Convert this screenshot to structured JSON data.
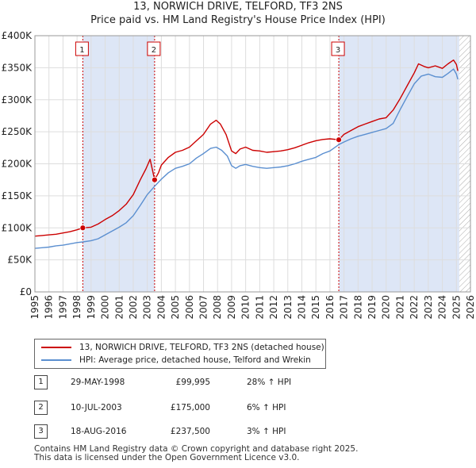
{
  "header": {
    "title": "13, NORWICH DRIVE, TELFORD, TF3 2NS",
    "subtitle": "Price paid vs. HM Land Registry's House Price Index (HPI)"
  },
  "legend": {
    "property_label": "13, NORWICH DRIVE, TELFORD, TF3 2NS (detached house)",
    "hpi_label": "HPI: Average price, detached house, Telford and Wrekin"
  },
  "sales": [
    {
      "num": "1",
      "date": "29-MAY-1998",
      "price": "£99,995",
      "hpi": "28% ↑ HPI"
    },
    {
      "num": "2",
      "date": "10-JUL-2003",
      "price": "£175,000",
      "hpi": "6% ↑ HPI"
    },
    {
      "num": "3",
      "date": "18-AUG-2016",
      "price": "£237,500",
      "hpi": "3% ↑ HPI"
    }
  ],
  "footer": {
    "line1": "Contains HM Land Registry data © Crown copyright and database right 2025.",
    "line2": "This data is licensed under the Open Government Licence v3.0."
  },
  "colors": {
    "property": "#cc0000",
    "hpi": "#5b8fd0",
    "shade": "#dde6f6",
    "grid": "#dddddd"
  },
  "chart_data": {
    "type": "line",
    "title": "13, NORWICH DRIVE, TELFORD, TF3 2NS",
    "subtitle": "Price paid vs. HM Land Registry's House Price Index (HPI)",
    "xlim": [
      1995,
      2026
    ],
    "ylim": [
      0,
      400000
    ],
    "x_ticks": [
      1995,
      1996,
      1997,
      1998,
      1999,
      2000,
      2001,
      2002,
      2003,
      2004,
      2005,
      2006,
      2007,
      2008,
      2009,
      2010,
      2011,
      2012,
      2013,
      2014,
      2015,
      2016,
      2017,
      2018,
      2019,
      2020,
      2021,
      2022,
      2023,
      2024,
      2025,
      2026
    ],
    "y_ticks": [
      {
        "value": 0,
        "label": "£0"
      },
      {
        "value": 50000,
        "label": "£50K"
      },
      {
        "value": 100000,
        "label": "£100K"
      },
      {
        "value": 150000,
        "label": "£150K"
      },
      {
        "value": 200000,
        "label": "£200K"
      },
      {
        "value": 250000,
        "label": "£250K"
      },
      {
        "value": 300000,
        "label": "£300K"
      },
      {
        "value": 350000,
        "label": "£350K"
      },
      {
        "value": 400000,
        "label": "£400K"
      }
    ],
    "grid": true,
    "shaded_ranges": [
      [
        1998.41,
        2003.52
      ],
      [
        2016.63,
        2025.2
      ]
    ],
    "hatched_from": 2025.2,
    "markers": [
      {
        "label": "1",
        "x": 1998.41,
        "y": 99995
      },
      {
        "label": "2",
        "x": 2003.52,
        "y": 175000
      },
      {
        "label": "3",
        "x": 2016.63,
        "y": 237500
      }
    ],
    "series": [
      {
        "name": "13, NORWICH DRIVE, TELFORD, TF3 2NS (detached house)",
        "color": "#cc0000",
        "x": [
          1995,
          1995.5,
          1996,
          1996.5,
          1997,
          1997.5,
          1998,
          1998.41,
          1999,
          1999.5,
          2000,
          2000.5,
          2001,
          2001.5,
          2002,
          2002.5,
          2002.9,
          2003.2,
          2003.52,
          2003.8,
          2004,
          2004.5,
          2005,
          2005.5,
          2006,
          2006.5,
          2007,
          2007.5,
          2007.9,
          2008.2,
          2008.6,
          2009,
          2009.3,
          2009.6,
          2010,
          2010.5,
          2011,
          2011.5,
          2012,
          2012.5,
          2013,
          2013.5,
          2014,
          2014.5,
          2015,
          2015.5,
          2016,
          2016.63,
          2017,
          2017.5,
          2018,
          2018.5,
          2019,
          2019.5,
          2020,
          2020.5,
          2021,
          2021.5,
          2022,
          2022.3,
          2022.7,
          2023,
          2023.5,
          2024,
          2024.4,
          2024.8,
          2025,
          2025.1
        ],
        "y": [
          87000,
          88000,
          89000,
          90000,
          92000,
          94000,
          97000,
          99995,
          101000,
          106000,
          113000,
          119000,
          127000,
          137000,
          152000,
          175000,
          192000,
          207000,
          175000,
          186000,
          198000,
          210000,
          218000,
          221000,
          226000,
          236000,
          246000,
          262000,
          268000,
          262000,
          246000,
          220000,
          216000,
          223000,
          226000,
          221000,
          220000,
          218000,
          219000,
          220000,
          222000,
          225000,
          229000,
          233000,
          236000,
          238000,
          239000,
          237500,
          246000,
          252000,
          258000,
          262000,
          266000,
          270000,
          272000,
          284000,
          302000,
          322000,
          342000,
          356000,
          352000,
          350000,
          353000,
          349000,
          356000,
          362000,
          355000,
          345000
        ]
      },
      {
        "name": "HPI: Average price, detached house, Telford and Wrekin",
        "color": "#5b8fd0",
        "x": [
          1995,
          1995.5,
          1996,
          1996.5,
          1997,
          1997.5,
          1998,
          1998.41,
          1999,
          1999.5,
          2000,
          2000.5,
          2001,
          2001.5,
          2002,
          2002.5,
          2003,
          2003.52,
          2004,
          2004.5,
          2005,
          2005.5,
          2006,
          2006.5,
          2007,
          2007.5,
          2007.9,
          2008.3,
          2008.7,
          2009,
          2009.3,
          2009.6,
          2010,
          2010.5,
          2011,
          2011.5,
          2012,
          2012.5,
          2013,
          2013.5,
          2014,
          2014.5,
          2015,
          2015.5,
          2016,
          2016.63,
          2017,
          2017.5,
          2018,
          2018.5,
          2019,
          2019.5,
          2020,
          2020.5,
          2021,
          2021.5,
          2022,
          2022.5,
          2023,
          2023.5,
          2024,
          2024.4,
          2024.8,
          2025,
          2025.1
        ],
        "y": [
          68000,
          69000,
          70000,
          72000,
          73000,
          75000,
          77000,
          78000,
          80000,
          83000,
          89000,
          95000,
          101000,
          108000,
          119000,
          135000,
          152000,
          165000,
          176000,
          186000,
          193000,
          196000,
          200000,
          209000,
          216000,
          224000,
          226000,
          221000,
          212000,
          197000,
          193000,
          197000,
          199000,
          196000,
          194000,
          193000,
          194000,
          195000,
          197000,
          200000,
          204000,
          207000,
          210000,
          216000,
          220000,
          230000,
          234000,
          239000,
          243000,
          246000,
          249000,
          252000,
          255000,
          263000,
          285000,
          305000,
          325000,
          337000,
          340000,
          336000,
          335000,
          341000,
          348000,
          340000,
          332000
        ]
      }
    ]
  }
}
